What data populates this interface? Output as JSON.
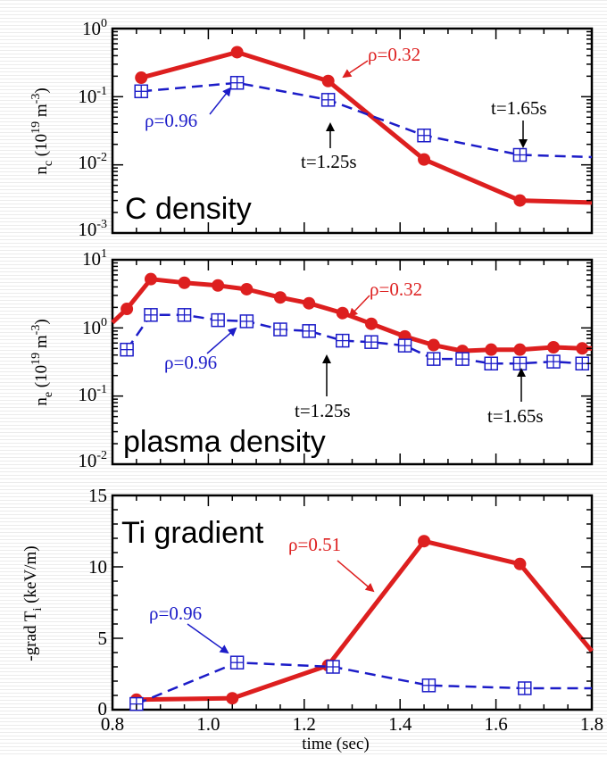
{
  "colors": {
    "red": "#dd1f1f",
    "blue": "#1c1cc8",
    "black": "#000000"
  },
  "x_axis": {
    "label": "time (sec)",
    "ticks": [
      "0.8",
      "1.0",
      "1.2",
      "1.4",
      "1.6",
      "1.8"
    ]
  },
  "chart_data": [
    {
      "type": "line",
      "panel_label": "C density",
      "ylabel": "n_c (10^19 m^-3)",
      "yscale": "log",
      "ylim": [
        0.001,
        1
      ],
      "xlim": [
        0.8,
        1.8
      ],
      "yticks": [
        "10^0",
        "10^-1",
        "10^-2",
        "10^-3"
      ],
      "series": [
        {
          "name": "ρ=0.32",
          "color": "#dd1f1f",
          "style": "solid",
          "marker": "circle",
          "x": [
            0.86,
            1.06,
            1.25,
            1.45,
            1.65,
            1.8
          ],
          "y": [
            0.19,
            0.45,
            0.17,
            0.012,
            0.003,
            0.0028
          ]
        },
        {
          "name": "ρ=0.96",
          "color": "#1c1cc8",
          "style": "dashed",
          "marker": "square-cross",
          "x": [
            0.86,
            1.06,
            1.25,
            1.45,
            1.65,
            1.8
          ],
          "y": [
            0.12,
            0.16,
            0.09,
            0.027,
            0.014,
            0.013
          ]
        }
      ],
      "annotations": [
        {
          "text": "ρ=0.32",
          "color": "#dd1f1f"
        },
        {
          "text": "ρ=0.96",
          "color": "#1c1cc8"
        },
        {
          "text": "t=1.25s",
          "color": "#000000"
        },
        {
          "text": "t=1.65s",
          "color": "#000000"
        }
      ]
    },
    {
      "type": "line",
      "panel_label": "plasma density",
      "ylabel": "n_e (10^19 m^-3)",
      "yscale": "log",
      "ylim": [
        0.01,
        10
      ],
      "xlim": [
        0.8,
        1.8
      ],
      "yticks": [
        "10^1",
        "10^0",
        "10^-1",
        "10^-2"
      ],
      "series": [
        {
          "name": "ρ=0.32",
          "color": "#dd1f1f",
          "style": "solid",
          "marker": "circle",
          "x": [
            0.8,
            0.83,
            0.88,
            0.95,
            1.02,
            1.08,
            1.15,
            1.21,
            1.28,
            1.34,
            1.41,
            1.47,
            1.53,
            1.59,
            1.65,
            1.72,
            1.78,
            1.8
          ],
          "y": [
            1.2,
            1.9,
            5.2,
            4.6,
            4.2,
            3.7,
            2.8,
            2.3,
            1.65,
            1.15,
            0.75,
            0.56,
            0.46,
            0.48,
            0.48,
            0.52,
            0.5,
            0.5
          ]
        },
        {
          "name": "ρ=0.96",
          "color": "#1c1cc8",
          "style": "dashed",
          "marker": "square-cross",
          "x": [
            0.83,
            0.88,
            0.95,
            1.02,
            1.08,
            1.15,
            1.21,
            1.28,
            1.34,
            1.41,
            1.47,
            1.53,
            1.59,
            1.65,
            1.72,
            1.78
          ],
          "y": [
            0.48,
            1.55,
            1.55,
            1.3,
            1.25,
            0.95,
            0.9,
            0.65,
            0.62,
            0.55,
            0.35,
            0.35,
            0.3,
            0.3,
            0.32,
            0.3
          ]
        }
      ],
      "annotations": [
        {
          "text": "ρ=0.32",
          "color": "#dd1f1f"
        },
        {
          "text": "ρ=0.96",
          "color": "#1c1cc8"
        },
        {
          "text": "t=1.25s",
          "color": "#000000"
        },
        {
          "text": "t=1.65s",
          "color": "#000000"
        }
      ]
    },
    {
      "type": "line",
      "panel_label": "Ti gradient",
      "ylabel": "-grad T_i (keV/m)",
      "yscale": "linear",
      "ylim": [
        0,
        15
      ],
      "xlim": [
        0.8,
        1.8
      ],
      "yticks": [
        "0",
        "5",
        "10",
        "15"
      ],
      "series": [
        {
          "name": "ρ=0.51",
          "color": "#dd1f1f",
          "style": "solid",
          "marker": "circle",
          "x": [
            0.85,
            1.05,
            1.25,
            1.45,
            1.65,
            1.8
          ],
          "y": [
            0.7,
            0.8,
            3.1,
            11.8,
            10.2,
            4.1
          ]
        },
        {
          "name": "ρ=0.96",
          "color": "#1c1cc8",
          "style": "dashed",
          "marker": "square-cross",
          "x": [
            0.85,
            1.06,
            1.26,
            1.46,
            1.66,
            1.8
          ],
          "y": [
            0.4,
            3.3,
            3.0,
            1.7,
            1.5,
            1.5
          ]
        }
      ],
      "annotations": [
        {
          "text": "ρ=0.51",
          "color": "#dd1f1f"
        },
        {
          "text": "ρ=0.96",
          "color": "#1c1cc8"
        }
      ]
    }
  ]
}
